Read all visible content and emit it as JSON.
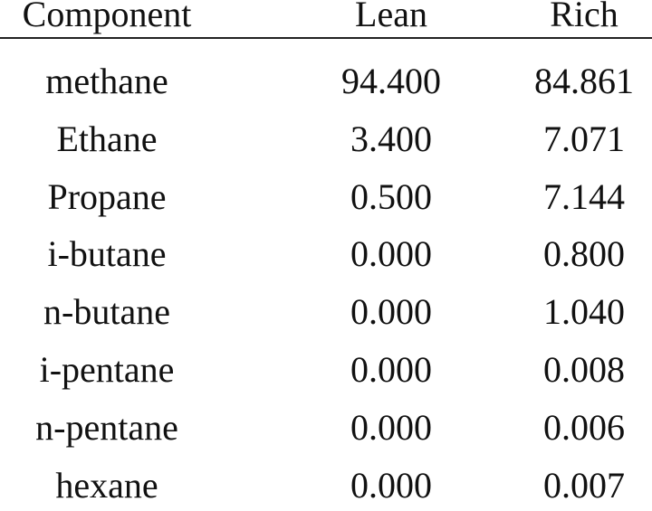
{
  "table": {
    "header": [
      "Component",
      "Lean",
      "Rich"
    ],
    "rows": [
      [
        "methane",
        "94.400",
        "84.861"
      ],
      [
        "Ethane",
        "3.400",
        "7.071"
      ],
      [
        "Propane",
        "0.500",
        "7.144"
      ],
      [
        "i-butane",
        "0.000",
        "0.800"
      ],
      [
        "n-butane",
        "0.000",
        "1.040"
      ],
      [
        "i-pentane",
        "0.000",
        "0.008"
      ],
      [
        "n-pentane",
        "0.000",
        "0.006"
      ],
      [
        "hexane",
        "0.000",
        "0.007"
      ]
    ]
  }
}
